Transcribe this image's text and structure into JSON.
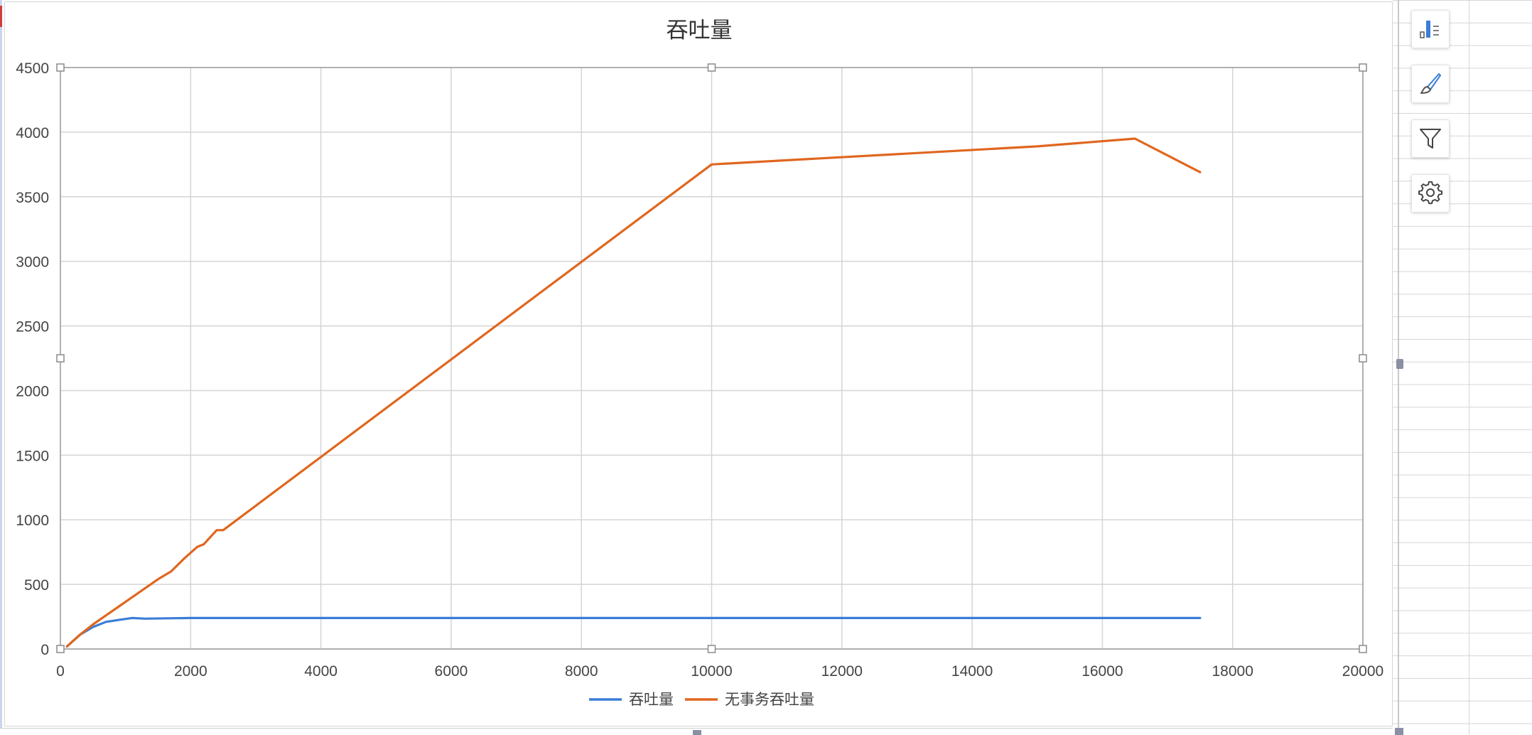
{
  "chart_data": {
    "type": "line",
    "title": "吞吐量",
    "xlabel": "",
    "ylabel": "",
    "xlim": [
      0,
      20000
    ],
    "ylim": [
      0,
      4500
    ],
    "x_ticks": [
      0,
      2000,
      4000,
      6000,
      8000,
      10000,
      12000,
      14000,
      16000,
      18000,
      20000
    ],
    "y_ticks": [
      0,
      500,
      1000,
      1500,
      2000,
      2500,
      3000,
      3500,
      4000,
      4500
    ],
    "grid": true,
    "legend_position": "bottom",
    "series": [
      {
        "name": "吞吐量",
        "color": "#3b7dd8",
        "points": [
          [
            100,
            20
          ],
          [
            300,
            110
          ],
          [
            500,
            170
          ],
          [
            700,
            210
          ],
          [
            900,
            225
          ],
          [
            1100,
            240
          ],
          [
            1300,
            235
          ],
          [
            2000,
            240
          ],
          [
            4000,
            240
          ],
          [
            6000,
            240
          ],
          [
            8000,
            240
          ],
          [
            10000,
            240
          ],
          [
            12000,
            240
          ],
          [
            14000,
            240
          ],
          [
            16000,
            240
          ],
          [
            17500,
            240
          ]
        ]
      },
      {
        "name": "无事务吞吐量",
        "color": "#e0661f",
        "points": [
          [
            100,
            20
          ],
          [
            300,
            110
          ],
          [
            500,
            190
          ],
          [
            700,
            260
          ],
          [
            900,
            330
          ],
          [
            1100,
            400
          ],
          [
            1300,
            470
          ],
          [
            1500,
            540
          ],
          [
            1700,
            600
          ],
          [
            1900,
            700
          ],
          [
            2100,
            790
          ],
          [
            2200,
            810
          ],
          [
            2400,
            920
          ],
          [
            2500,
            920
          ],
          [
            10000,
            3750
          ],
          [
            15000,
            3890
          ],
          [
            16500,
            3950
          ],
          [
            17500,
            3690
          ]
        ]
      }
    ]
  },
  "icons": {
    "chart_elements": "chart-elements-icon",
    "chart_style": "paintbrush-icon",
    "chart_filter": "filter-icon",
    "chart_settings": "gear-icon"
  }
}
